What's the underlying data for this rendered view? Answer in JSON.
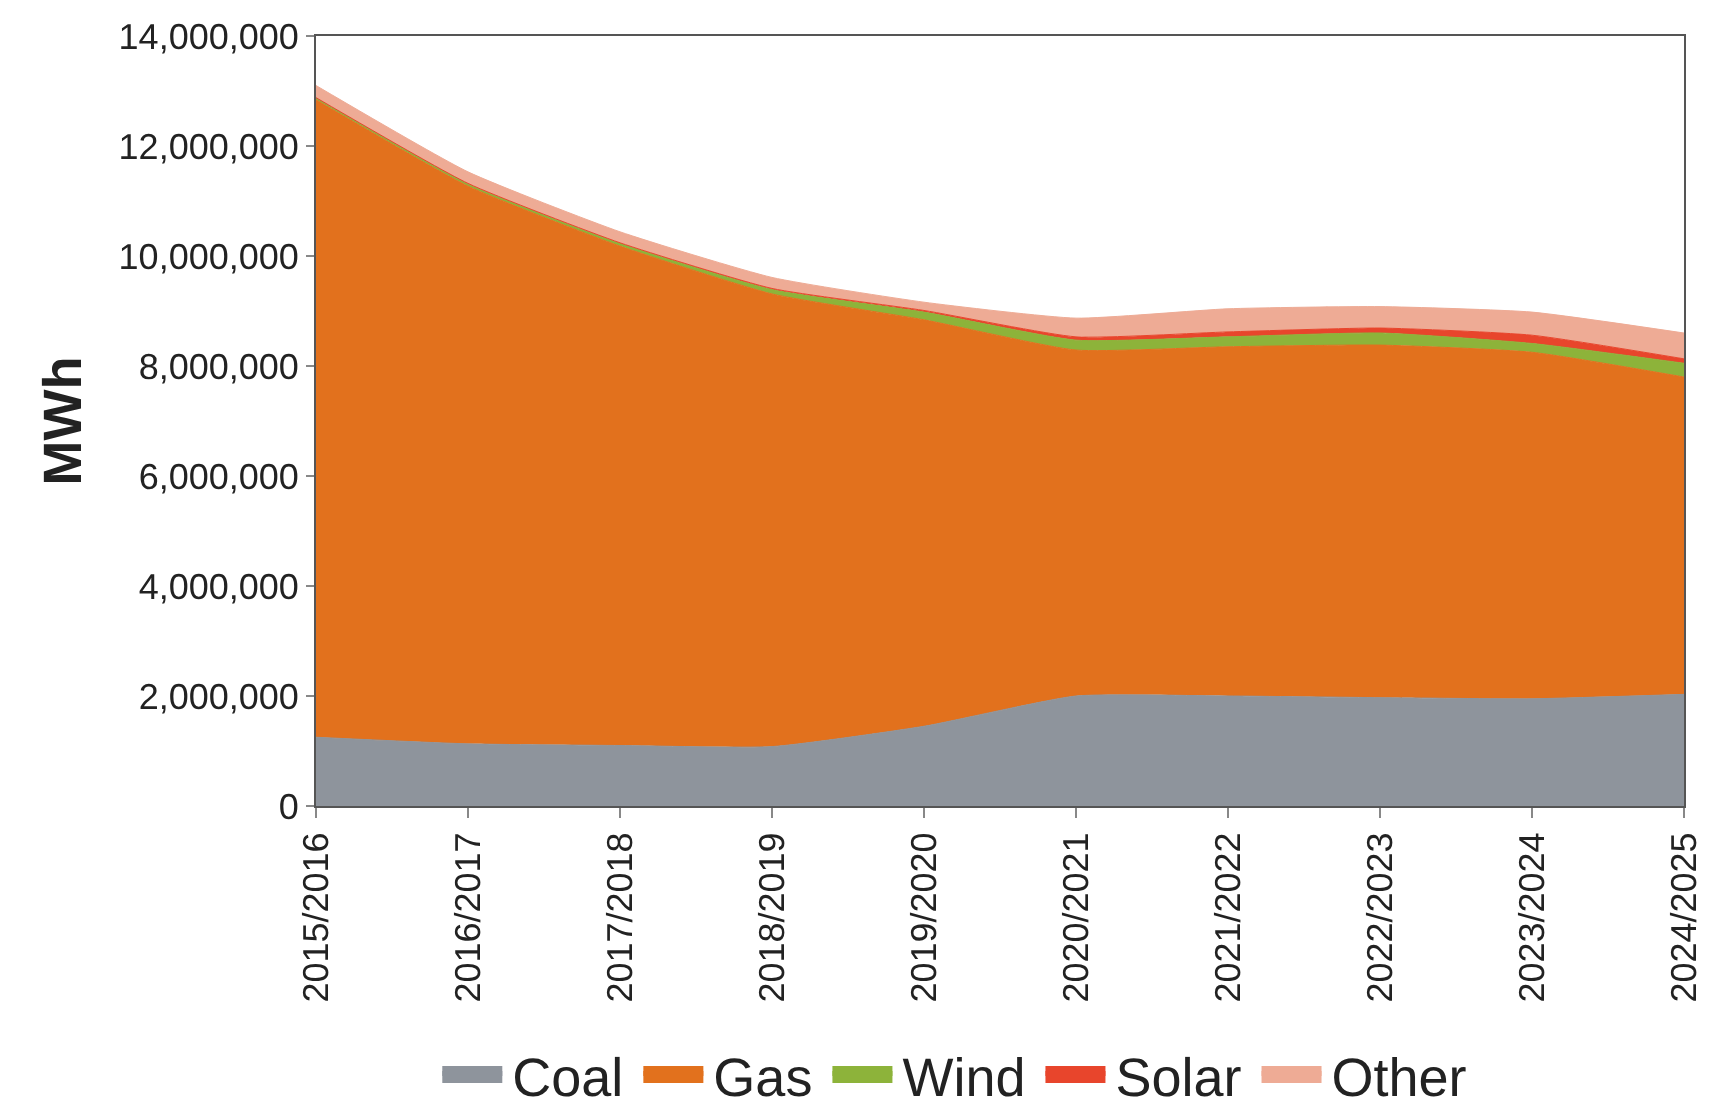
{
  "chart_data": {
    "type": "area",
    "stacked": true,
    "ylabel": "MWh",
    "categories": [
      "2015/2016",
      "2016/2017",
      "2017/2018",
      "2018/2019",
      "2019/2020",
      "2020/2021",
      "2021/2022",
      "2022/2023",
      "2023/2024",
      "2024/2025"
    ],
    "series": [
      {
        "name": "Coal",
        "color": "#8e949c",
        "values": [
          1250000,
          1130000,
          1100000,
          1080000,
          1450000,
          2000000,
          2000000,
          1970000,
          1950000,
          2030000
        ]
      },
      {
        "name": "Gas",
        "color": "#e2711d",
        "values": [
          11590000,
          10140000,
          9080000,
          8230000,
          7390000,
          6290000,
          6350000,
          6410000,
          6300000,
          5770000
        ]
      },
      {
        "name": "Wind",
        "color": "#8db33a",
        "values": [
          30000,
          40000,
          50000,
          80000,
          140000,
          180000,
          180000,
          220000,
          160000,
          250000
        ]
      },
      {
        "name": "Solar",
        "color": "#e8452c",
        "values": [
          10000,
          10000,
          10000,
          20000,
          30000,
          60000,
          90000,
          90000,
          150000,
          80000
        ]
      },
      {
        "name": "Other",
        "color": "#eeab95",
        "values": [
          220000,
          210000,
          200000,
          200000,
          150000,
          340000,
          420000,
          390000,
          420000,
          470000
        ]
      }
    ],
    "ylim": [
      0,
      14000000
    ],
    "yticks": [
      {
        "value": 0,
        "label": "0"
      },
      {
        "value": 2000000,
        "label": "2,000,000"
      },
      {
        "value": 4000000,
        "label": "4,000,000"
      },
      {
        "value": 6000000,
        "label": "6,000,000"
      },
      {
        "value": 8000000,
        "label": "8,000,000"
      },
      {
        "value": 10000000,
        "label": "10,000,000"
      },
      {
        "value": 12000000,
        "label": "12,000,000"
      },
      {
        "value": 14000000,
        "label": "14,000,000"
      }
    ],
    "legend": "bottom"
  }
}
